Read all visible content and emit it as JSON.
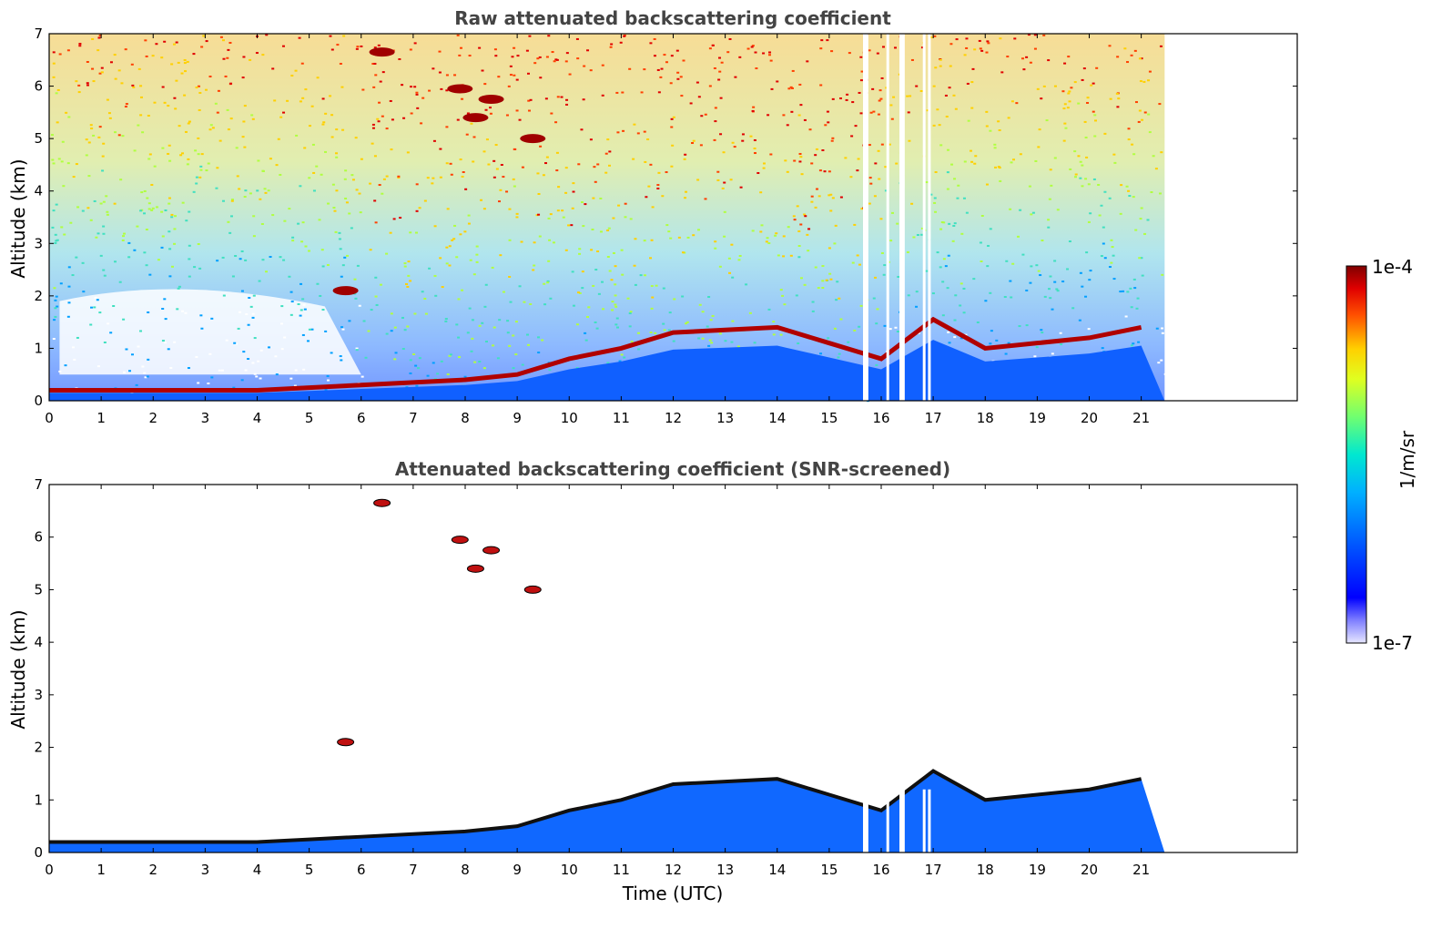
{
  "chart_data": [
    {
      "type": "heatmap",
      "title": "Raw attenuated backscattering coefficient",
      "xlabel": "",
      "ylabel": "Altitude (km)",
      "xlim": [
        0,
        24
      ],
      "ylim": [
        0,
        7
      ],
      "xticks": [
        "0",
        "1",
        "2",
        "3",
        "4",
        "5",
        "6",
        "7",
        "8",
        "9",
        "10",
        "11",
        "12",
        "13",
        "14",
        "15",
        "16",
        "17",
        "18",
        "19",
        "20",
        "21"
      ],
      "yticks": [
        "0",
        "1",
        "2",
        "3",
        "4",
        "5",
        "6",
        "7"
      ],
      "data_extent_hours": [
        0,
        21.45
      ],
      "dropout_times_hours": [
        15.65,
        15.7,
        16.1,
        16.35,
        16.4,
        16.8,
        16.9
      ],
      "boundary_layer_top_km": [
        {
          "x": 0,
          "y": 0.2
        },
        {
          "x": 1,
          "y": 0.2
        },
        {
          "x": 2,
          "y": 0.2
        },
        {
          "x": 3,
          "y": 0.2
        },
        {
          "x": 4,
          "y": 0.2
        },
        {
          "x": 5,
          "y": 0.25
        },
        {
          "x": 6,
          "y": 0.3
        },
        {
          "x": 7,
          "y": 0.35
        },
        {
          "x": 8,
          "y": 0.4
        },
        {
          "x": 9,
          "y": 0.5
        },
        {
          "x": 10,
          "y": 0.8
        },
        {
          "x": 11,
          "y": 1.0
        },
        {
          "x": 12,
          "y": 1.3
        },
        {
          "x": 13,
          "y": 1.35
        },
        {
          "x": 14,
          "y": 1.4
        },
        {
          "x": 15,
          "y": 1.1
        },
        {
          "x": 16,
          "y": 0.8
        },
        {
          "x": 17,
          "y": 1.55
        },
        {
          "x": 18,
          "y": 1.0
        },
        {
          "x": 19,
          "y": 1.1
        },
        {
          "x": 20,
          "y": 1.2
        },
        {
          "x": 21,
          "y": 1.4
        }
      ]
    },
    {
      "type": "heatmap",
      "title": "Attenuated backscattering coefficient (SNR-screened)",
      "xlabel": "Time (UTC)",
      "ylabel": "Altitude (km)",
      "xlim": [
        0,
        24
      ],
      "ylim": [
        0,
        7
      ],
      "xticks": [
        "0",
        "1",
        "2",
        "3",
        "4",
        "5",
        "6",
        "7",
        "8",
        "9",
        "10",
        "11",
        "12",
        "13",
        "14",
        "15",
        "16",
        "17",
        "18",
        "19",
        "20",
        "21"
      ],
      "yticks": [
        "0",
        "1",
        "2",
        "3",
        "4",
        "5",
        "6",
        "7"
      ],
      "data_extent_hours": [
        0,
        21.45
      ],
      "elevated_features": [
        {
          "x": 6.4,
          "y": 6.65
        },
        {
          "x": 7.9,
          "y": 5.95
        },
        {
          "x": 8.5,
          "y": 5.75
        },
        {
          "x": 8.2,
          "y": 5.4
        },
        {
          "x": 9.3,
          "y": 5.0
        },
        {
          "x": 5.7,
          "y": 2.1
        }
      ]
    }
  ],
  "colorbar": {
    "max_label": "1e-4",
    "min_label": "1e-7",
    "unit_label": "1/m/sr",
    "colors": [
      "#e6e6ff",
      "#7f7fff",
      "#0000ff",
      "#0050ff",
      "#00a0ff",
      "#00e0e0",
      "#40ff80",
      "#a0ff30",
      "#ffff00",
      "#ffb000",
      "#ff5000",
      "#e00000",
      "#800000"
    ]
  }
}
